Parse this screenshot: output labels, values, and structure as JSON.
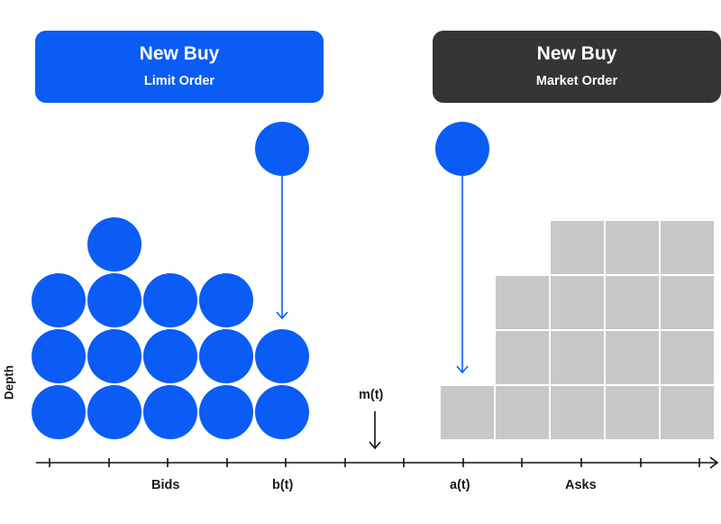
{
  "limit_order": {
    "title": "New Buy",
    "subtitle": "Limit Order"
  },
  "market_order": {
    "title": "New Buy",
    "subtitle": "Market Order"
  },
  "axis": {
    "y_label": "Depth",
    "x_labels": {
      "bids": "Bids",
      "best_bid": "b(t)",
      "best_ask": "a(t)",
      "asks": "Asks"
    },
    "mid_label": "m(t)"
  },
  "bid_stacks": [
    3,
    4,
    3,
    3,
    2
  ],
  "ask_stacks": [
    1,
    3,
    4,
    4,
    4
  ],
  "colors": {
    "blue": "#0a5cf5",
    "dark": "#353535",
    "grey": "#c8c8c8",
    "axis": "#111111"
  }
}
